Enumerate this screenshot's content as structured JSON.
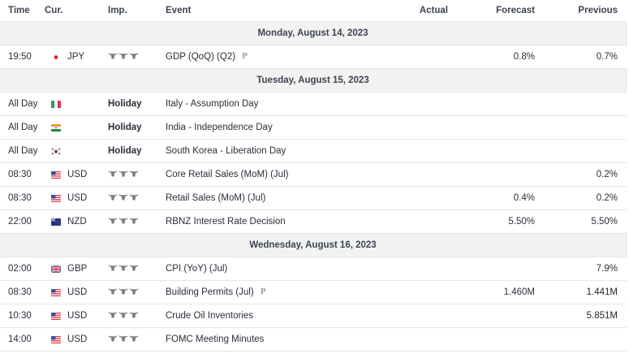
{
  "columns": {
    "time": "Time",
    "currency": "Cur.",
    "importance": "Imp.",
    "event": "Event",
    "actual": "Actual",
    "forecast": "Forecast",
    "previous": "Previous"
  },
  "days": [
    {
      "date": "Monday, August 14, 2023",
      "events": [
        {
          "time": "19:50",
          "flag": "jp",
          "currency": "JPY",
          "importance": 3,
          "event": "GDP (QoQ) (Q2)",
          "preliminary": true,
          "actual": "",
          "forecast": "0.8%",
          "previous": "0.7%"
        }
      ]
    },
    {
      "date": "Tuesday, August 15, 2023",
      "events": [
        {
          "time": "All Day",
          "flag": "it",
          "currency": "",
          "importance_label": "Holiday",
          "event": "Italy - Assumption Day",
          "actual": "",
          "forecast": "",
          "previous": ""
        },
        {
          "time": "All Day",
          "flag": "in",
          "currency": "",
          "importance_label": "Holiday",
          "event": "India - Independence Day",
          "actual": "",
          "forecast": "",
          "previous": ""
        },
        {
          "time": "All Day",
          "flag": "kr",
          "currency": "",
          "importance_label": "Holiday",
          "event": "South Korea - Liberation Day",
          "actual": "",
          "forecast": "",
          "previous": ""
        },
        {
          "time": "08:30",
          "flag": "us",
          "currency": "USD",
          "importance": 3,
          "event": "Core Retail Sales (MoM) (Jul)",
          "actual": "",
          "forecast": "",
          "previous": "0.2%"
        },
        {
          "time": "08:30",
          "flag": "us",
          "currency": "USD",
          "importance": 3,
          "event": "Retail Sales (MoM) (Jul)",
          "actual": "",
          "forecast": "0.4%",
          "previous": "0.2%"
        },
        {
          "time": "22:00",
          "flag": "nz",
          "currency": "NZD",
          "importance": 3,
          "event": "RBNZ Interest Rate Decision",
          "actual": "",
          "forecast": "5.50%",
          "previous": "5.50%"
        }
      ]
    },
    {
      "date": "Wednesday, August 16, 2023",
      "events": [
        {
          "time": "02:00",
          "flag": "gb",
          "currency": "GBP",
          "importance": 3,
          "event": "CPI (YoY) (Jul)",
          "actual": "",
          "forecast": "",
          "previous": "7.9%"
        },
        {
          "time": "08:30",
          "flag": "us",
          "currency": "USD",
          "importance": 3,
          "event": "Building Permits (Jul)",
          "preliminary": true,
          "actual": "",
          "forecast": "1.460M",
          "previous": "1.441M"
        },
        {
          "time": "10:30",
          "flag": "us",
          "currency": "USD",
          "importance": 3,
          "event": "Crude Oil Inventories",
          "actual": "",
          "forecast": "",
          "previous": "5.851M"
        },
        {
          "time": "14:00",
          "flag": "us",
          "currency": "USD",
          "importance": 3,
          "event": "FOMC Meeting Minutes",
          "actual": "",
          "forecast": "",
          "previous": ""
        }
      ]
    }
  ],
  "icons": {
    "importance": "bull-icon",
    "preliminary": "P"
  },
  "colors": {
    "header_bg": "#ffffff",
    "date_row_bg": "#f2f2f2",
    "border": "#e6e6e6",
    "bull": "#7a7a7a",
    "text": "#2a2e39"
  }
}
